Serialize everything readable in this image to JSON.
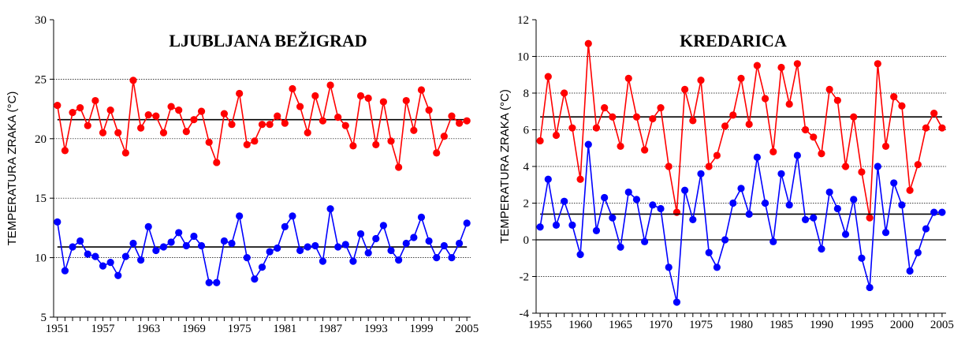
{
  "chart_data": [
    {
      "type": "line",
      "title": "LJUBLJANA BEŽIGRAD",
      "ylabel": "TEMPERATURA ZRAKA (°C)",
      "xlabel": "",
      "ylim": [
        5,
        30
      ],
      "yticks": [
        5,
        10,
        15,
        20,
        25,
        30
      ],
      "xlim": [
        1951,
        2005
      ],
      "xticks": [
        1951,
        1957,
        1963,
        1969,
        1975,
        1981,
        1987,
        1993,
        1999,
        2005
      ],
      "grid": "horizontal dotted",
      "x_start": 1951,
      "series": [
        {
          "color": "#ff0000",
          "mean": 21.6,
          "values": [
            22.8,
            19.0,
            22.2,
            22.6,
            21.1,
            23.2,
            20.5,
            22.4,
            20.5,
            18.8,
            24.9,
            20.9,
            22.0,
            21.9,
            20.5,
            22.7,
            22.4,
            20.6,
            21.6,
            22.3,
            19.7,
            18.0,
            22.1,
            21.2,
            23.8,
            19.5,
            19.8,
            21.2,
            21.2,
            21.9,
            21.3,
            24.2,
            22.7,
            20.5,
            23.6,
            21.5,
            24.5,
            21.8,
            21.1,
            19.4,
            23.6,
            23.4,
            19.5,
            23.1,
            19.8,
            17.6,
            23.2,
            20.7,
            24.1,
            22.4,
            18.8,
            20.2,
            21.9,
            21.3,
            21.5
          ]
        },
        {
          "color": "#0000ff",
          "mean": 10.9,
          "values": [
            13.0,
            8.9,
            10.9,
            11.4,
            10.3,
            10.1,
            9.3,
            9.6,
            8.5,
            10.1,
            11.2,
            9.8,
            12.6,
            10.6,
            10.9,
            11.3,
            12.1,
            11.0,
            11.8,
            11.0,
            7.9,
            7.9,
            11.4,
            11.2,
            13.5,
            10.0,
            8.2,
            9.2,
            10.5,
            10.8,
            12.6,
            13.5,
            10.6,
            10.9,
            11.0,
            9.7,
            14.1,
            10.9,
            11.1,
            9.7,
            12.0,
            10.4,
            11.6,
            12.7,
            10.6,
            9.8,
            11.2,
            11.7,
            13.4,
            11.4,
            10.0,
            11.0,
            10.0,
            11.2,
            12.9
          ]
        }
      ]
    },
    {
      "type": "line",
      "title": "KREDARICA",
      "ylabel": "TEMPERATURA ZRAKA (°C)",
      "xlabel": "",
      "ylim": [
        -4,
        12
      ],
      "yticks": [
        -4,
        -2,
        0,
        2,
        4,
        6,
        8,
        10,
        12
      ],
      "xlim": [
        1955,
        2005
      ],
      "xticks": [
        1955,
        1960,
        1965,
        1970,
        1975,
        1980,
        1985,
        1990,
        1995,
        2000,
        2005
      ],
      "grid": "horizontal dotted",
      "x_start": 1955,
      "series": [
        {
          "color": "#ff0000",
          "mean": 6.7,
          "values": [
            5.4,
            8.9,
            5.7,
            8.0,
            6.1,
            3.3,
            10.7,
            6.1,
            7.2,
            6.7,
            5.1,
            8.8,
            6.7,
            4.9,
            6.6,
            7.2,
            4.0,
            1.5,
            8.2,
            6.5,
            8.7,
            4.0,
            4.6,
            6.2,
            6.8,
            8.8,
            6.3,
            9.5,
            7.7,
            4.8,
            9.4,
            7.4,
            9.6,
            6.0,
            5.6,
            4.7,
            8.2,
            7.6,
            4.0,
            6.7,
            3.7,
            1.2,
            9.6,
            5.1,
            7.8,
            7.3,
            2.7,
            4.1,
            6.1,
            6.9,
            6.1
          ]
        },
        {
          "color": "#0000ff",
          "mean": 1.4,
          "values": [
            0.7,
            3.3,
            0.8,
            2.1,
            0.8,
            -0.8,
            5.2,
            0.5,
            2.3,
            1.2,
            -0.4,
            2.6,
            2.2,
            -0.1,
            1.9,
            1.7,
            -1.5,
            -3.4,
            2.7,
            1.1,
            3.6,
            -0.7,
            -1.5,
            0.0,
            2.0,
            2.8,
            1.4,
            4.5,
            2.0,
            -0.1,
            3.6,
            1.9,
            4.6,
            1.1,
            1.2,
            -0.5,
            2.6,
            1.7,
            0.3,
            2.2,
            -1.0,
            -2.6,
            4.0,
            0.4,
            3.1,
            1.9,
            -1.7,
            -0.7,
            0.6,
            1.5,
            1.5
          ]
        }
      ]
    }
  ]
}
